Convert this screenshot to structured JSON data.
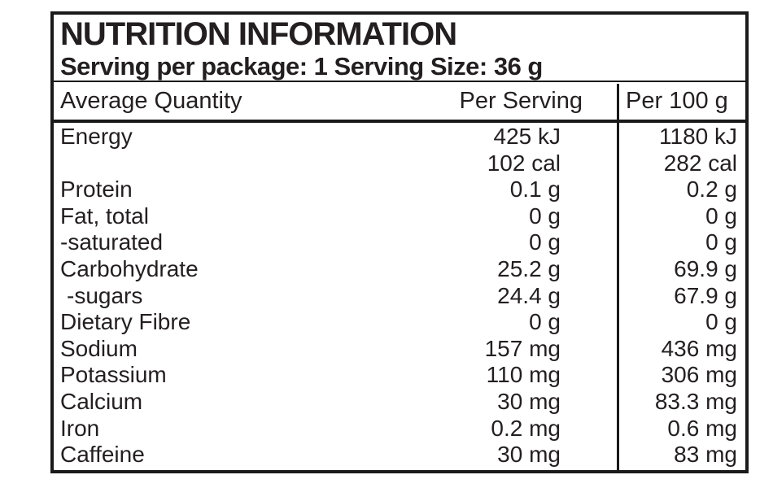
{
  "header": {
    "title": "NUTRITION INFORMATION",
    "subtitle": "Serving per package: 1 Serving Size: 36 g"
  },
  "columns": {
    "quantity": "Average Quantity",
    "per_serving": "Per Serving",
    "per_100g": "Per 100 g"
  },
  "rows": [
    {
      "label": "Energy",
      "indent": false,
      "per_serving": [
        "425 kJ",
        "102 cal"
      ],
      "per_100g": [
        "1180 kJ",
        "282 cal"
      ]
    },
    {
      "label": "Protein",
      "indent": false,
      "per_serving": [
        "0.1 g"
      ],
      "per_100g": [
        "0.2 g"
      ]
    },
    {
      "label": "Fat, total",
      "indent": false,
      "per_serving": [
        "0 g"
      ],
      "per_100g": [
        "0 g"
      ]
    },
    {
      "label": "-saturated",
      "indent": false,
      "per_serving": [
        "0 g"
      ],
      "per_100g": [
        "0 g"
      ]
    },
    {
      "label": "Carbohydrate",
      "indent": false,
      "per_serving": [
        "25.2 g"
      ],
      "per_100g": [
        "69.9 g"
      ]
    },
    {
      "label": "-sugars",
      "indent": true,
      "per_serving": [
        "24.4 g"
      ],
      "per_100g": [
        "67.9 g"
      ]
    },
    {
      "label": "Dietary Fibre",
      "indent": false,
      "per_serving": [
        "0 g"
      ],
      "per_100g": [
        "0 g"
      ]
    },
    {
      "label": "Sodium",
      "indent": false,
      "per_serving": [
        "157 mg"
      ],
      "per_100g": [
        "436 mg"
      ]
    },
    {
      "label": "Potassium",
      "indent": false,
      "per_serving": [
        "110 mg"
      ],
      "per_100g": [
        "306 mg"
      ]
    },
    {
      "label": "Calcium",
      "indent": false,
      "per_serving": [
        "30 mg"
      ],
      "per_100g": [
        "83.3 mg"
      ]
    },
    {
      "label": "Iron",
      "indent": false,
      "per_serving": [
        "0.2 mg"
      ],
      "per_100g": [
        "0.6 mg"
      ]
    },
    {
      "label": "Caffeine",
      "indent": false,
      "per_serving": [
        "30 mg"
      ],
      "per_100g": [
        "83 mg"
      ]
    }
  ],
  "colors": {
    "text": "#231f20",
    "border": "#1a1a1a",
    "bg": "#ffffff"
  }
}
